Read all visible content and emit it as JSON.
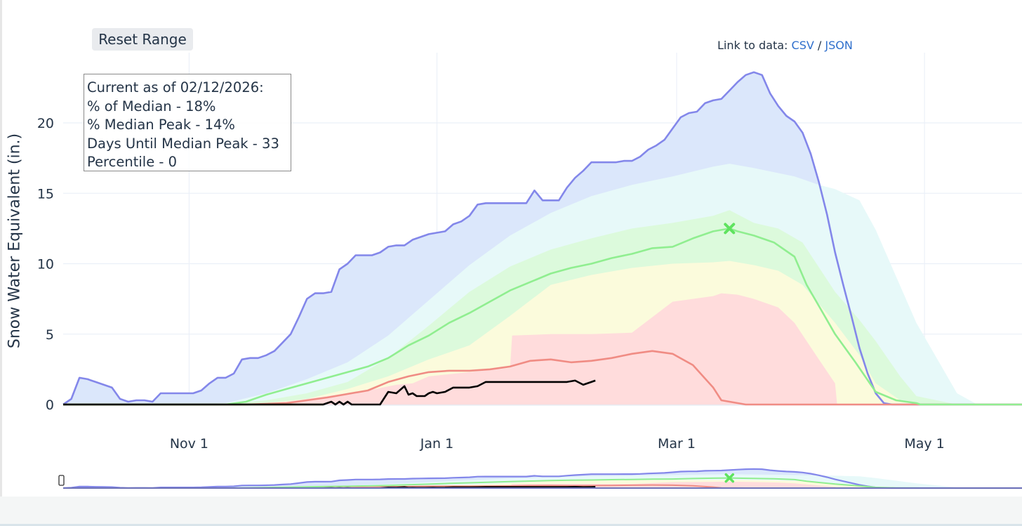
{
  "controls": {
    "reset_label": "Reset Range",
    "link_prefix": "Link to data:",
    "csv_label": "CSV",
    "separator": "/",
    "json_label": "JSON"
  },
  "info_box": {
    "line1": "Current as of 02/12/2026:",
    "line2": "% of Median - 18%",
    "line3": "% Median Peak - 14%",
    "line4": "Days Until Median Peak - 33",
    "line5": "Percentile - 0"
  },
  "chart_data": {
    "type": "area",
    "title": "",
    "xlabel": "",
    "ylabel": "Snow Water Equivalent (in.)",
    "ylim": [
      0,
      24
    ],
    "yticks": [
      0,
      5,
      10,
      15,
      20
    ],
    "xticks": [
      {
        "day": 31,
        "label": "Nov  1"
      },
      {
        "day": 92,
        "label": "Jan  1"
      },
      {
        "day": 151,
        "label": "Mar  1"
      },
      {
        "day": 212,
        "label": "May  1"
      }
    ],
    "grid": true,
    "range_slider": true,
    "colors": {
      "max": "#8387ea",
      "max_fill": "#dbe7fb",
      "band_90": "#e7f9f9",
      "band_70": "#dcfadc",
      "band_50": "#fbfbdc",
      "band_30": "#ffdcdc",
      "median": "#90ee90",
      "min": "#f08c84",
      "current": "#000000",
      "peak_marker": "#5ee35e"
    },
    "series": [
      {
        "key": "max",
        "x": [
          0,
          2,
          4,
          6,
          8,
          10,
          12,
          14,
          16,
          18,
          20,
          22,
          24,
          26,
          28,
          30,
          32,
          34,
          36,
          38,
          40,
          42,
          44,
          46,
          48,
          50,
          52,
          54,
          56,
          58,
          60,
          62,
          64,
          66,
          68,
          70,
          72,
          74,
          76,
          78,
          80,
          82,
          84,
          86,
          88,
          90,
          92,
          94,
          96,
          98,
          100,
          102,
          104,
          106,
          108,
          110,
          112,
          114,
          116,
          118,
          120,
          122,
          124,
          126,
          128,
          130,
          132,
          134,
          136,
          138,
          140,
          142,
          144,
          146,
          148,
          150,
          152,
          154,
          156,
          158,
          160,
          162,
          164,
          166,
          168,
          170,
          172,
          174,
          176,
          178,
          180,
          182,
          184,
          186,
          188,
          190,
          192,
          194,
          196,
          198,
          200,
          202,
          204,
          206,
          208,
          210,
          212,
          214,
          216,
          218,
          220,
          222,
          224,
          226,
          236
        ],
        "y": [
          0,
          0.4,
          1.9,
          1.8,
          1.6,
          1.4,
          1.2,
          0.4,
          0.2,
          0.3,
          0.3,
          0.2,
          0.8,
          0.8,
          0.8,
          0.8,
          0.8,
          1.0,
          1.5,
          1.9,
          1.9,
          2.2,
          3.2,
          3.3,
          3.3,
          3.5,
          3.8,
          4.4,
          5.0,
          6.2,
          7.5,
          7.9,
          7.9,
          8.0,
          9.6,
          10.0,
          10.6,
          10.6,
          10.6,
          10.8,
          11.2,
          11.3,
          11.3,
          11.7,
          11.9,
          12.1,
          12.2,
          12.3,
          12.8,
          13.0,
          13.4,
          14.2,
          14.3,
          14.3,
          14.3,
          14.3,
          14.3,
          14.3,
          15.2,
          14.5,
          14.5,
          14.5,
          15.4,
          16.1,
          16.6,
          17.2,
          17.2,
          17.2,
          17.2,
          17.3,
          17.3,
          17.6,
          18.1,
          18.4,
          18.8,
          19.6,
          20.4,
          20.7,
          20.8,
          21.4,
          21.6,
          21.7,
          22.3,
          22.9,
          23.4,
          23.6,
          23.4,
          22.1,
          21.2,
          20.5,
          20.1,
          19.3,
          17.8,
          15.8,
          13.5,
          10.8,
          8.5,
          6.3,
          4.0,
          2.2,
          0.8,
          0.1,
          0,
          0,
          0,
          0,
          0,
          0,
          0,
          0,
          0,
          0,
          0,
          0,
          0
        ]
      },
      {
        "key": "band_90",
        "x": [
          0,
          30,
          40,
          50,
          60,
          70,
          80,
          90,
          100,
          110,
          120,
          130,
          140,
          150,
          160,
          164,
          170,
          180,
          186,
          190,
          196,
          200,
          210,
          220,
          225,
          236
        ],
        "y": [
          0,
          0,
          0.1,
          0.8,
          1.8,
          3.0,
          4.9,
          7.4,
          9.9,
          12.0,
          13.6,
          14.8,
          15.6,
          16.2,
          16.9,
          17.1,
          16.8,
          16.2,
          15.6,
          15.3,
          14.5,
          12.4,
          5.8,
          0.8,
          0,
          0
        ]
      },
      {
        "key": "band_70",
        "x": [
          0,
          30,
          40,
          50,
          60,
          70,
          80,
          90,
          100,
          110,
          120,
          130,
          140,
          150,
          160,
          164,
          170,
          176,
          182,
          190,
          196,
          200,
          206,
          210,
          220,
          236
        ],
        "y": [
          0,
          0,
          0.05,
          0.3,
          0.8,
          1.6,
          3.3,
          5.6,
          8.0,
          9.8,
          11.0,
          11.8,
          12.5,
          12.9,
          13.4,
          13.8,
          12.9,
          12.5,
          11.5,
          8.0,
          6.0,
          4.5,
          2.0,
          0.6,
          0,
          0
        ]
      },
      {
        "key": "band_50",
        "x": [
          0,
          40,
          50,
          60,
          70,
          80,
          90,
          100,
          110,
          120,
          130,
          140,
          150,
          160,
          164,
          170,
          176,
          182,
          190,
          196,
          200,
          206,
          210,
          220,
          236
        ],
        "y": [
          0,
          0,
          0.1,
          0.4,
          1.1,
          2.0,
          3.2,
          4.2,
          6.3,
          8.5,
          9.2,
          9.7,
          10.0,
          10.1,
          10.2,
          9.9,
          9.5,
          8.5,
          5.8,
          3.5,
          1.5,
          0.3,
          0,
          0,
          0
        ]
      },
      {
        "key": "band_30",
        "x": [
          0,
          45,
          55,
          65,
          75,
          82,
          86,
          90,
          100,
          110,
          110.5,
          120,
          130,
          140,
          150,
          160,
          162,
          166,
          170,
          176,
          180,
          186,
          190,
          190.5,
          236
        ],
        "y": [
          0,
          0,
          0.2,
          0.6,
          1.0,
          1.4,
          1.5,
          2.0,
          2.3,
          2.6,
          4.9,
          5.0,
          5.0,
          5.1,
          7.3,
          7.7,
          7.9,
          7.8,
          7.5,
          6.9,
          5.8,
          3.2,
          1.5,
          0,
          0
        ]
      },
      {
        "key": "median",
        "x": [
          0,
          40,
          45,
          50,
          55,
          60,
          65,
          70,
          75,
          80,
          85,
          90,
          95,
          100,
          105,
          110,
          115,
          120,
          125,
          130,
          135,
          140,
          145,
          150,
          155,
          160,
          164,
          166,
          170,
          175,
          180,
          183,
          186,
          190,
          195,
          200,
          205,
          210,
          211,
          236
        ],
        "y": [
          0,
          0,
          0.2,
          0.7,
          1.1,
          1.5,
          1.9,
          2.3,
          2.7,
          3.3,
          4.2,
          4.9,
          5.8,
          6.5,
          7.3,
          8.1,
          8.7,
          9.3,
          9.7,
          10.0,
          10.4,
          10.7,
          11.1,
          11.2,
          11.8,
          12.3,
          12.5,
          12.3,
          12.0,
          11.5,
          10.5,
          8.5,
          7.0,
          5.0,
          3.0,
          0.9,
          0.3,
          0.1,
          0,
          0
        ]
      },
      {
        "key": "min",
        "x": [
          0,
          45,
          55,
          65,
          75,
          80,
          85,
          90,
          95,
          100,
          105,
          110,
          115,
          120,
          125,
          130,
          135,
          140,
          145,
          150,
          155,
          160,
          162,
          168,
          236
        ],
        "y": [
          0,
          0,
          0.1,
          0.5,
          1.0,
          1.6,
          2.0,
          2.3,
          2.4,
          2.4,
          2.5,
          2.7,
          3.1,
          3.2,
          3.0,
          3.1,
          3.3,
          3.6,
          3.8,
          3.6,
          2.8,
          1.2,
          0.3,
          0,
          0
        ]
      },
      {
        "key": "current",
        "x": [
          0,
          64,
          66,
          67,
          68,
          69,
          70,
          71,
          72,
          73,
          74,
          76,
          78,
          80,
          82,
          84,
          85,
          86,
          87,
          88,
          89,
          90,
          91,
          92,
          94,
          96,
          98,
          100,
          102,
          104,
          106,
          108,
          110,
          112,
          114,
          116,
          118,
          120,
          122,
          124,
          126,
          128,
          130,
          131
        ],
        "y": [
          0,
          0,
          0.2,
          0,
          0.2,
          0,
          0.2,
          0,
          0,
          0,
          0,
          0,
          0,
          0.9,
          0.8,
          1.3,
          0.7,
          0.8,
          0.6,
          0.6,
          0.6,
          0.8,
          0.9,
          0.8,
          0.9,
          1.2,
          1.2,
          1.2,
          1.3,
          1.6,
          1.6,
          1.6,
          1.6,
          1.6,
          1.6,
          1.6,
          1.6,
          1.6,
          1.6,
          1.6,
          1.7,
          1.4,
          1.6,
          1.7
        ]
      }
    ],
    "peak_marker": {
      "x": 164,
      "y": 12.5,
      "symbol": "x"
    },
    "range_slider_label": "0"
  }
}
